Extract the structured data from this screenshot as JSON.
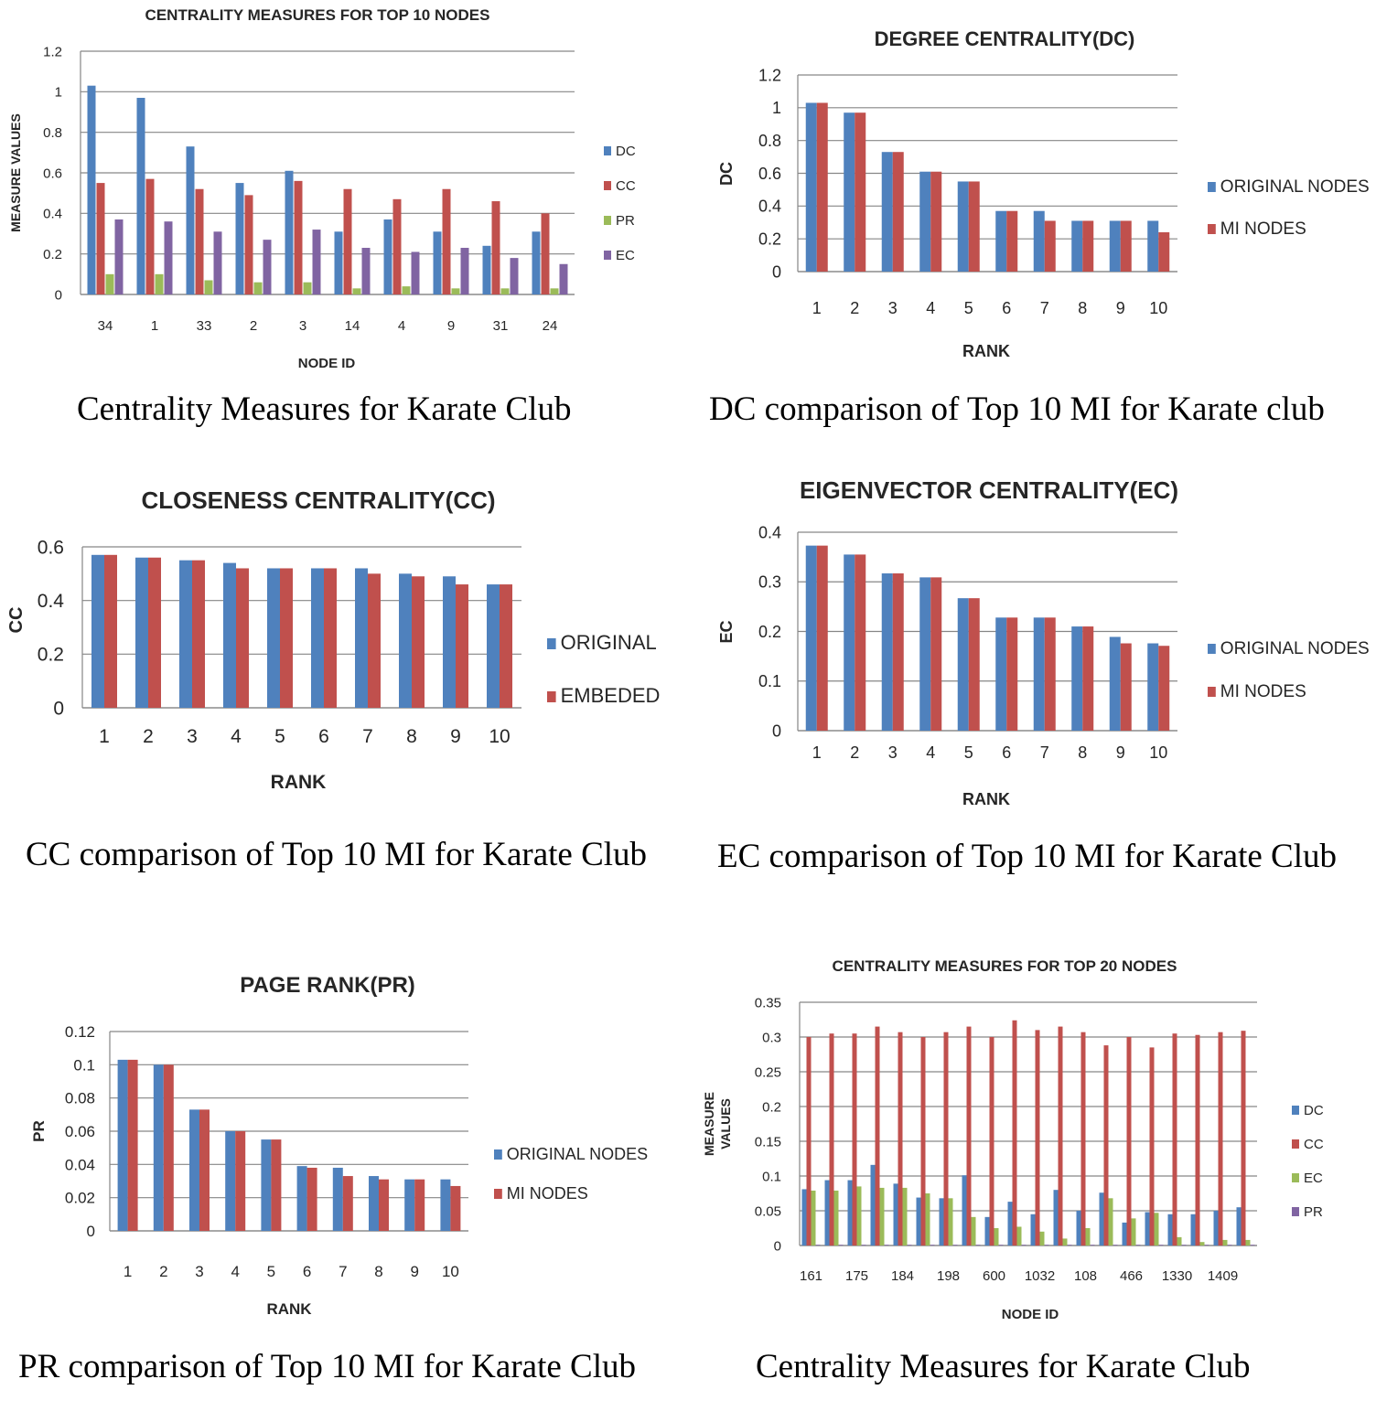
{
  "colors": {
    "blue": "#4f81bd",
    "red": "#c0504d",
    "green": "#9bbb59",
    "purple": "#8064a2",
    "grid": "#868686",
    "text": "#262626"
  },
  "chart_data": [
    {
      "type": "bar",
      "title": "CENTRALITY MEASURES FOR TOP 10 NODES",
      "xlabel": "NODE ID",
      "ylabel": "MEASURE VALUES",
      "ylim": [
        0,
        1.2
      ],
      "yticks": [
        "0",
        "0.2",
        "0.4",
        "0.6",
        "0.8",
        "1",
        "1.2"
      ],
      "categories": [
        "34",
        "1",
        "33",
        "2",
        "3",
        "14",
        "4",
        "9",
        "31",
        "24"
      ],
      "legend_position": "right",
      "series": [
        {
          "name": "DC",
          "color": "#4f81bd",
          "values": [
            1.03,
            0.97,
            0.73,
            0.55,
            0.61,
            0.31,
            0.37,
            0.31,
            0.24,
            0.31
          ]
        },
        {
          "name": "CC",
          "color": "#c0504d",
          "values": [
            0.55,
            0.57,
            0.52,
            0.49,
            0.56,
            0.52,
            0.47,
            0.52,
            0.46,
            0.4
          ]
        },
        {
          "name": "PR",
          "color": "#9bbb59",
          "values": [
            0.1,
            0.1,
            0.07,
            0.06,
            0.06,
            0.03,
            0.04,
            0.03,
            0.03,
            0.03
          ]
        },
        {
          "name": "EC",
          "color": "#8064a2",
          "values": [
            0.37,
            0.36,
            0.31,
            0.27,
            0.32,
            0.23,
            0.21,
            0.23,
            0.18,
            0.15
          ]
        }
      ]
    },
    {
      "type": "bar",
      "title": "DEGREE CENTRALITY(DC)",
      "xlabel": "RANK",
      "ylabel": "DC",
      "ylim": [
        0,
        1.2
      ],
      "yticks": [
        "0",
        "0.2",
        "0.4",
        "0.6",
        "0.8",
        "1",
        "1.2"
      ],
      "categories": [
        "1",
        "2",
        "3",
        "4",
        "5",
        "6",
        "7",
        "8",
        "9",
        "10"
      ],
      "legend_position": "right",
      "series": [
        {
          "name": "ORIGINAL NODES",
          "color": "#4f81bd",
          "values": [
            1.03,
            0.97,
            0.73,
            0.61,
            0.55,
            0.37,
            0.37,
            0.31,
            0.31,
            0.31
          ]
        },
        {
          "name": "MI NODES",
          "color": "#c0504d",
          "values": [
            1.03,
            0.97,
            0.73,
            0.61,
            0.55,
            0.37,
            0.31,
            0.31,
            0.31,
            0.24
          ]
        }
      ]
    },
    {
      "type": "bar",
      "title": "CLOSENESS CENTRALITY(CC)",
      "xlabel": "RANK",
      "ylabel": "CC",
      "ylim": [
        0,
        0.6
      ],
      "yticks": [
        "0",
        "0.2",
        "0.4",
        "0.6"
      ],
      "categories": [
        "1",
        "2",
        "3",
        "4",
        "5",
        "6",
        "7",
        "8",
        "9",
        "10"
      ],
      "legend_position": "right",
      "series": [
        {
          "name": "ORIGINAL",
          "color": "#4f81bd",
          "values": [
            0.57,
            0.56,
            0.55,
            0.54,
            0.52,
            0.52,
            0.52,
            0.5,
            0.49,
            0.46
          ]
        },
        {
          "name": "EMBEDED",
          "color": "#c0504d",
          "values": [
            0.57,
            0.56,
            0.55,
            0.52,
            0.52,
            0.52,
            0.5,
            0.49,
            0.46,
            0.46
          ]
        }
      ]
    },
    {
      "type": "bar",
      "title": "EIGENVECTOR CENTRALITY(EC)",
      "xlabel": "RANK",
      "ylabel": "EC",
      "ylim": [
        0,
        0.4
      ],
      "yticks": [
        "0",
        "0.1",
        "0.2",
        "0.3",
        "0.4"
      ],
      "categories": [
        "1",
        "2",
        "3",
        "4",
        "5",
        "6",
        "7",
        "8",
        "9",
        "10"
      ],
      "legend_position": "right",
      "series": [
        {
          "name": "ORIGINAL NODES",
          "color": "#4f81bd",
          "values": [
            0.373,
            0.355,
            0.317,
            0.309,
            0.267,
            0.228,
            0.228,
            0.21,
            0.189,
            0.176
          ]
        },
        {
          "name": "MI NODES",
          "color": "#c0504d",
          "values": [
            0.373,
            0.355,
            0.317,
            0.309,
            0.267,
            0.228,
            0.228,
            0.21,
            0.176,
            0.171
          ]
        }
      ]
    },
    {
      "type": "bar",
      "title": "PAGE RANK(PR)",
      "xlabel": "RANK",
      "ylabel": "PR",
      "ylim": [
        0,
        0.12
      ],
      "yticks": [
        "0",
        "0.02",
        "0.04",
        "0.06",
        "0.08",
        "0.1",
        "0.12"
      ],
      "categories": [
        "1",
        "2",
        "3",
        "4",
        "5",
        "6",
        "7",
        "8",
        "9",
        "10"
      ],
      "legend_position": "right",
      "series": [
        {
          "name": "ORIGINAL NODES",
          "color": "#4f81bd",
          "values": [
            0.103,
            0.1,
            0.073,
            0.06,
            0.055,
            0.039,
            0.038,
            0.033,
            0.031,
            0.031
          ]
        },
        {
          "name": "MI NODES",
          "color": "#c0504d",
          "values": [
            0.103,
            0.1,
            0.073,
            0.06,
            0.055,
            0.038,
            0.033,
            0.031,
            0.031,
            0.027
          ]
        }
      ]
    },
    {
      "type": "bar",
      "title": "CENTRALITY MEASURES FOR TOP 20 NODES",
      "xlabel": "NODE ID",
      "ylabel": "MEASURE VALUES",
      "ylabel_lines": [
        "MEASURE",
        "VALUES"
      ],
      "ylim": [
        0,
        0.35
      ],
      "yticks": [
        "0",
        "0.05",
        "0.1",
        "0.15",
        "0.2",
        "0.25",
        "0.3",
        "0.35"
      ],
      "categories": [
        "161",
        "",
        "175",
        "",
        "184",
        "",
        "198",
        "",
        "600",
        "",
        "1032",
        "",
        "108",
        "",
        "466",
        "",
        "1330",
        "",
        "1409",
        ""
      ],
      "legend_position": "right",
      "series": [
        {
          "name": "DC",
          "color": "#4f81bd",
          "values": [
            0.081,
            0.094,
            0.094,
            0.116,
            0.089,
            0.069,
            0.068,
            0.101,
            0.041,
            0.063,
            0.045,
            0.08,
            0.05,
            0.076,
            0.033,
            0.048,
            0.045,
            0.045,
            0.05,
            0.055
          ]
        },
        {
          "name": "CC",
          "color": "#c0504d",
          "values": [
            0.3,
            0.305,
            0.305,
            0.315,
            0.307,
            0.3,
            0.307,
            0.315,
            0.3,
            0.324,
            0.31,
            0.315,
            0.307,
            0.288,
            0.3,
            0.285,
            0.305,
            0.303,
            0.307,
            0.309
          ]
        },
        {
          "name": "EC",
          "color": "#9bbb59",
          "values": [
            0.079,
            0.079,
            0.085,
            0.083,
            0.083,
            0.075,
            0.068,
            0.041,
            0.025,
            0.027,
            0.02,
            0.01,
            0.025,
            0.068,
            0.039,
            0.047,
            0.012,
            0.005,
            0.008,
            0.008
          ]
        },
        {
          "name": "PR",
          "color": "#8064a2",
          "values": [
            0.001,
            0.001,
            0.001,
            0.001,
            0.001,
            0.001,
            0.001,
            0.001,
            0.001,
            0.001,
            0.001,
            0.001,
            0.001,
            0.001,
            0.001,
            0.001,
            0.001,
            0.001,
            0.001,
            0.001
          ]
        }
      ]
    }
  ],
  "captions": [
    "Centrality Measures for Karate Club",
    "DC comparison of Top 10 MI for Karate club",
    "CC comparison of Top 10 MI for Karate Club",
    "EC comparison of Top 10 MI for Karate Club",
    "PR comparison of Top 10 MI for Karate Club",
    "Centrality Measures for Karate Club"
  ]
}
